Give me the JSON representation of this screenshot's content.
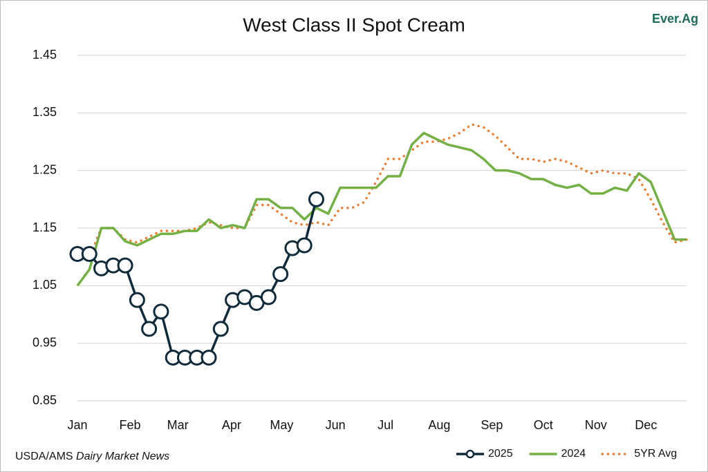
{
  "chart_data": {
    "type": "line",
    "title": "West Class II Spot Cream",
    "brand": "Ever.Ag",
    "source": "USDA/AMS ",
    "source_italic": "Dairy Market News",
    "xlim": [
      0,
      51
    ],
    "xticks": [
      {
        "value": 0,
        "label": "Jan"
      },
      {
        "value": 4.4,
        "label": "Feb"
      },
      {
        "value": 8.4,
        "label": "Mar"
      },
      {
        "value": 12.9,
        "label": "Apr"
      },
      {
        "value": 17.1,
        "label": "May"
      },
      {
        "value": 21.6,
        "label": "Jun"
      },
      {
        "value": 25.8,
        "label": "Jul"
      },
      {
        "value": 30.3,
        "label": "Aug"
      },
      {
        "value": 34.7,
        "label": "Sep"
      },
      {
        "value": 39,
        "label": "Oct"
      },
      {
        "value": 43.4,
        "label": "Nov"
      },
      {
        "value": 47.6,
        "label": "Dec"
      }
    ],
    "ylim": [
      0.85,
      1.45
    ],
    "yticks": [
      0.85,
      0.95,
      1.05,
      1.15,
      1.25,
      1.35,
      1.45
    ],
    "grid": true,
    "legend": "bottom-right",
    "series": [
      {
        "name": "2025",
        "color": "#0e2a3b",
        "style": "marker",
        "x": [
          0,
          1,
          2,
          3,
          4,
          5,
          6,
          7,
          8,
          9,
          10,
          11,
          12,
          13,
          14,
          15,
          16,
          17,
          18,
          19,
          20
        ],
        "values": [
          1.105,
          1.105,
          1.08,
          1.085,
          1.085,
          1.025,
          0.975,
          1.005,
          0.925,
          0.925,
          0.925,
          0.925,
          0.975,
          1.025,
          1.03,
          1.02,
          1.03,
          1.07,
          1.115,
          1.12,
          1.2
        ]
      },
      {
        "name": "2024",
        "color": "#72b043",
        "style": "solid",
        "x": [
          0,
          1,
          2,
          3,
          4,
          5,
          6,
          7,
          8,
          9,
          10,
          11,
          12,
          13,
          14,
          15,
          16,
          17,
          18,
          19,
          20,
          21,
          22,
          23,
          24,
          25,
          26,
          27,
          28,
          29,
          30,
          31,
          32,
          33,
          34,
          35,
          36,
          37,
          38,
          39,
          40,
          41,
          42,
          43,
          44,
          45,
          46,
          47,
          48,
          49,
          50,
          51
        ],
        "values": [
          1.05,
          1.078,
          1.15,
          1.15,
          1.127,
          1.12,
          1.13,
          1.14,
          1.14,
          1.145,
          1.145,
          1.165,
          1.15,
          1.155,
          1.15,
          1.2,
          1.2,
          1.185,
          1.185,
          1.165,
          1.185,
          1.175,
          1.22,
          1.22,
          1.22,
          1.22,
          1.24,
          1.24,
          1.295,
          1.315,
          1.305,
          1.295,
          1.29,
          1.285,
          1.27,
          1.25,
          1.25,
          1.245,
          1.235,
          1.235,
          1.225,
          1.22,
          1.225,
          1.21,
          1.21,
          1.22,
          1.215,
          1.245,
          1.23,
          1.18,
          1.13,
          1.13
        ]
      },
      {
        "name": "5YR Avg",
        "color": "#ed7d31",
        "style": "dotted",
        "x": [
          0,
          1,
          2,
          3,
          4,
          5,
          6,
          7,
          8,
          9,
          10,
          11,
          12,
          13,
          14,
          15,
          16,
          17,
          18,
          19,
          20,
          21,
          22,
          23,
          24,
          25,
          26,
          27,
          28,
          29,
          30,
          31,
          32,
          33,
          34,
          35,
          36,
          37,
          38,
          39,
          40,
          41,
          42,
          43,
          44,
          45,
          46,
          47,
          48,
          49,
          50,
          51
        ],
        "values": [
          1.11,
          1.1,
          1.15,
          1.15,
          1.13,
          1.125,
          1.135,
          1.145,
          1.145,
          1.145,
          1.15,
          1.16,
          1.155,
          1.15,
          1.15,
          1.19,
          1.19,
          1.175,
          1.16,
          1.155,
          1.16,
          1.155,
          1.185,
          1.185,
          1.195,
          1.23,
          1.27,
          1.27,
          1.285,
          1.3,
          1.3,
          1.305,
          1.315,
          1.33,
          1.325,
          1.31,
          1.29,
          1.27,
          1.27,
          1.265,
          1.27,
          1.265,
          1.255,
          1.245,
          1.25,
          1.245,
          1.245,
          1.235,
          1.2,
          1.16,
          1.125,
          1.13
        ]
      }
    ]
  }
}
